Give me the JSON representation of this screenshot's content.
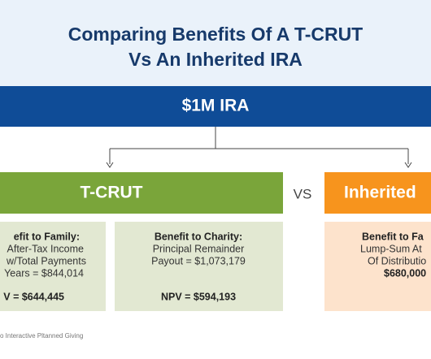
{
  "header": {
    "title_lines": [
      "Comparing Benefits Of A T-CRUT",
      "Vs An Inherited IRA"
    ]
  },
  "banner": "$1M IRA",
  "vs": "VS",
  "left": {
    "heading": "T-CRUT",
    "boxes": [
      {
        "title": "efit to Family:",
        "lines": [
          "After-Tax Income",
          "w/Total Payments",
          "Years = $844,014"
        ],
        "npv": "V = $644,445"
      },
      {
        "title": "Benefit to Charity:",
        "lines": [
          "Principal Remainder",
          "Payout = $1,073,179"
        ],
        "npv": "NPV = $594,193"
      }
    ]
  },
  "right": {
    "heading": "Inherited",
    "box": {
      "title": "Benefit to Fa",
      "lines": [
        "Lump-Sum At",
        "Of Distributio"
      ],
      "amount": "$680,000"
    }
  },
  "footer": "o Interactive Pltanned Giving"
}
